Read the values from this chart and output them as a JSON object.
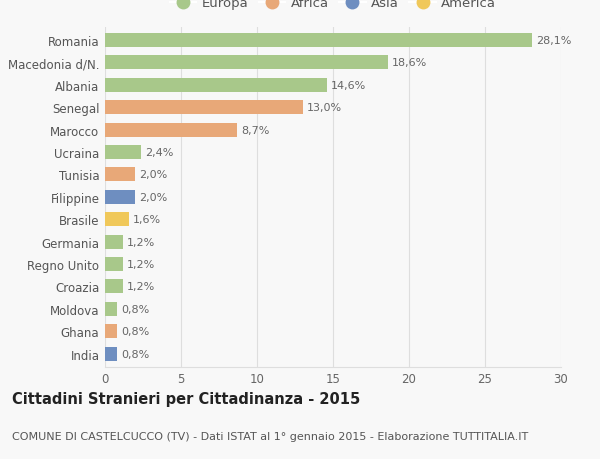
{
  "countries": [
    "Romania",
    "Macedonia d/N.",
    "Albania",
    "Senegal",
    "Marocco",
    "Ucraina",
    "Tunisia",
    "Filippine",
    "Brasile",
    "Germania",
    "Regno Unito",
    "Croazia",
    "Moldova",
    "Ghana",
    "India"
  ],
  "values": [
    28.1,
    18.6,
    14.6,
    13.0,
    8.7,
    2.4,
    2.0,
    2.0,
    1.6,
    1.2,
    1.2,
    1.2,
    0.8,
    0.8,
    0.8
  ],
  "labels": [
    "28,1%",
    "18,6%",
    "14,6%",
    "13,0%",
    "8,7%",
    "2,4%",
    "2,0%",
    "2,0%",
    "1,6%",
    "1,2%",
    "1,2%",
    "1,2%",
    "0,8%",
    "0,8%",
    "0,8%"
  ],
  "continents": [
    "Europa",
    "Europa",
    "Europa",
    "Africa",
    "Africa",
    "Europa",
    "Africa",
    "Asia",
    "America",
    "Europa",
    "Europa",
    "Europa",
    "Europa",
    "Africa",
    "Asia"
  ],
  "colors": {
    "Europa": "#a8c88a",
    "Africa": "#e8a878",
    "Asia": "#6e8ec0",
    "America": "#f0c85a"
  },
  "legend_order": [
    "Europa",
    "Africa",
    "Asia",
    "America"
  ],
  "title": "Cittadini Stranieri per Cittadinanza - 2015",
  "subtitle": "COMUNE DI CASTELCUCCO (TV) - Dati ISTAT al 1° gennaio 2015 - Elaborazione TUTTITALIA.IT",
  "xlim": [
    0,
    30
  ],
  "xticks": [
    0,
    5,
    10,
    15,
    20,
    25,
    30
  ],
  "bg_color": "#f8f8f8",
  "grid_color": "#dedede",
  "bar_height": 0.62,
  "title_fontsize": 10.5,
  "subtitle_fontsize": 8.0,
  "label_fontsize": 8.0,
  "tick_fontsize": 8.5,
  "legend_fontsize": 9.5
}
